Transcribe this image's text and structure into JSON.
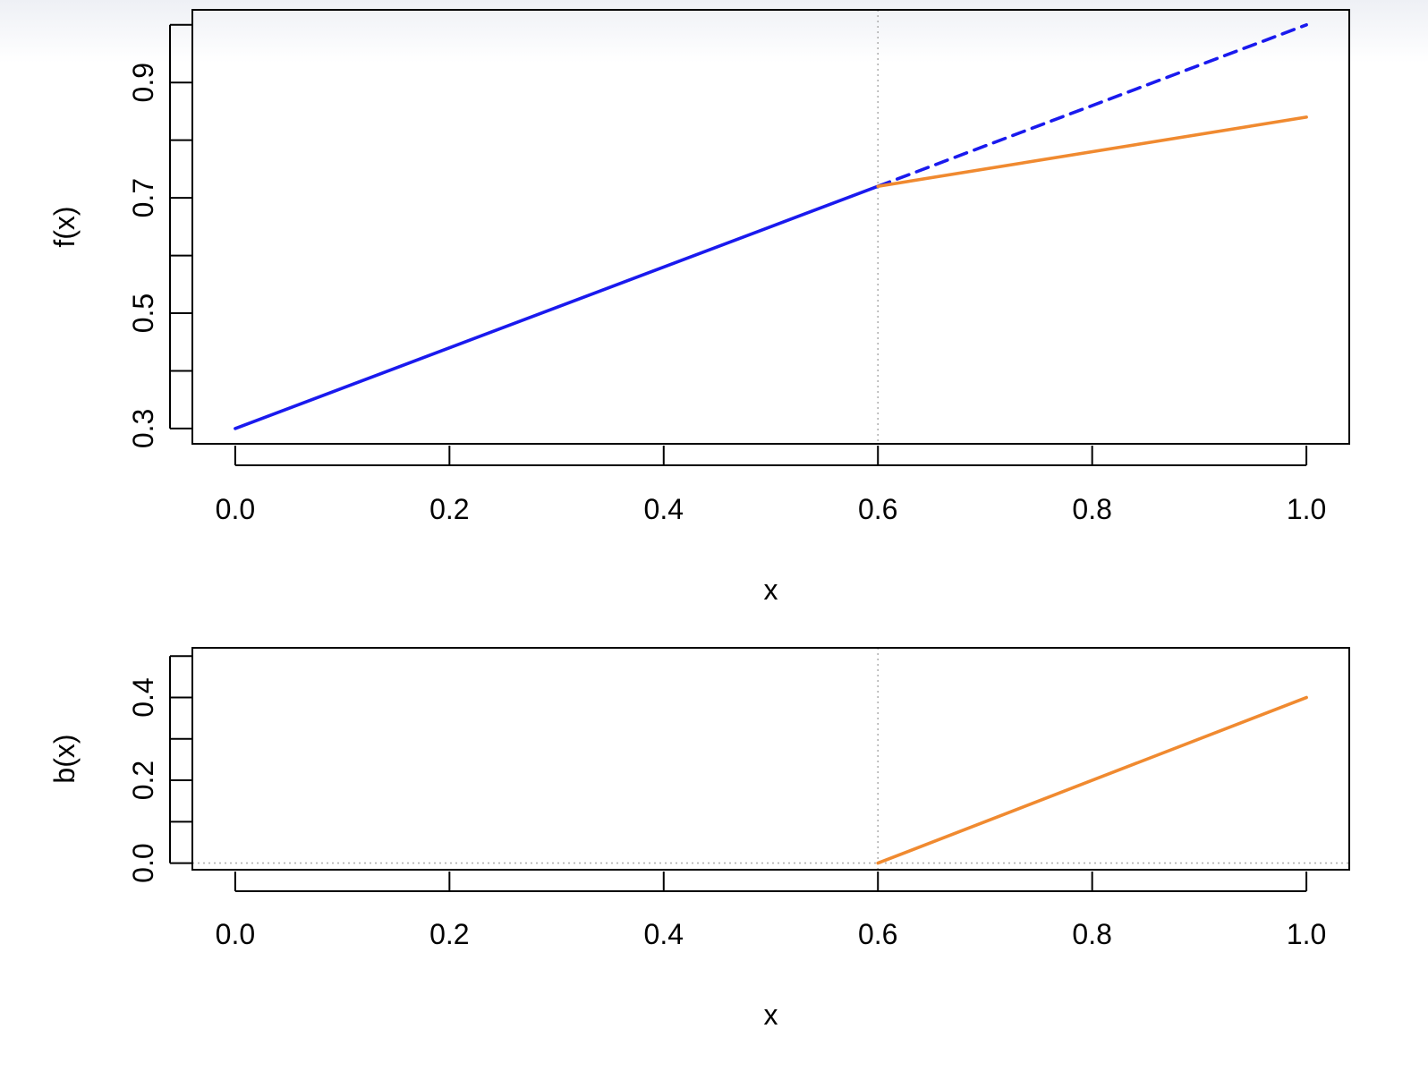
{
  "chart_data": [
    {
      "type": "line",
      "xlabel": "x",
      "ylabel": "f(x)",
      "xlim": [
        -0.04,
        1.04
      ],
      "ylim": [
        0.2735,
        1.026
      ],
      "x_ticks": [
        "0.0",
        "0.2",
        "0.4",
        "0.6",
        "0.8",
        "1.0"
      ],
      "y_ticks": [
        "0.3",
        "0.4",
        "0.5",
        "0.6",
        "0.7",
        "0.8",
        "0.9",
        "1.0"
      ],
      "y_tick_labels": [
        "0.3",
        "",
        "0.5",
        "",
        "0.7",
        "",
        "0.9",
        ""
      ],
      "reference_lines": [
        {
          "orientation": "vertical",
          "value": 0.6,
          "style": "dotted",
          "color": "#b0b0b0"
        }
      ],
      "series": [
        {
          "x": [
            0,
            0.6
          ],
          "y": [
            0.3,
            0.72
          ],
          "color": "#1a1aee",
          "style": "solid"
        },
        {
          "x": [
            0.6,
            1.0
          ],
          "y": [
            0.72,
            1.0
          ],
          "color": "#1a1aee",
          "style": "dashed"
        },
        {
          "x": [
            0.6,
            1.0
          ],
          "y": [
            0.72,
            0.84
          ],
          "color": "#f08a30",
          "style": "solid"
        }
      ],
      "grid": false
    },
    {
      "type": "line",
      "xlabel": "x",
      "ylabel": "b(x)",
      "xlim": [
        -0.04,
        1.04
      ],
      "ylim": [
        -0.016,
        0.52
      ],
      "x_ticks": [
        "0.0",
        "0.2",
        "0.4",
        "0.6",
        "0.8",
        "1.0"
      ],
      "y_ticks": [
        "0.0",
        "0.1",
        "0.2",
        "0.3",
        "0.4",
        "0.5"
      ],
      "y_tick_labels": [
        "0.0",
        "",
        "0.2",
        "",
        "0.4",
        ""
      ],
      "reference_lines": [
        {
          "orientation": "vertical",
          "value": 0.6,
          "style": "dotted",
          "color": "#b0b0b0"
        },
        {
          "orientation": "horizontal",
          "value": 0.0,
          "style": "dotted",
          "color": "#b0b0b0"
        }
      ],
      "series": [
        {
          "x": [
            0.6,
            1.0
          ],
          "y": [
            0.0,
            0.4
          ],
          "color": "#f08a30",
          "style": "solid"
        }
      ],
      "grid": false
    }
  ]
}
